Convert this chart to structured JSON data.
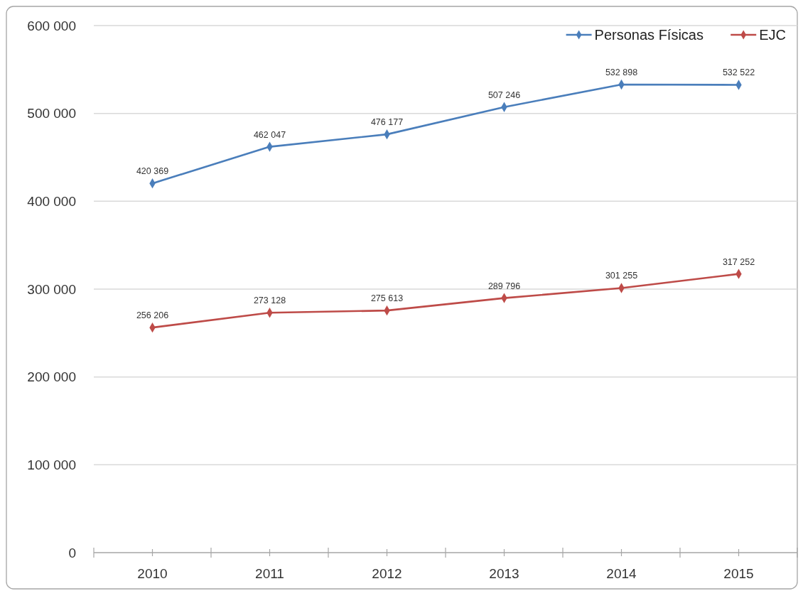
{
  "chart_data": {
    "type": "line",
    "categories": [
      "2010",
      "2011",
      "2012",
      "2013",
      "2014",
      "2015"
    ],
    "series": [
      {
        "name": "Personas Físicas",
        "color": "#4a7ebb",
        "values": [
          420369,
          462047,
          476177,
          507246,
          532898,
          532522
        ],
        "value_labels": [
          "420 369",
          "462 047",
          "476 177",
          "507 246",
          "532 898",
          "532 522"
        ]
      },
      {
        "name": "EJC",
        "color": "#be4b48",
        "values": [
          256206,
          273128,
          275613,
          289796,
          301255,
          317252
        ],
        "value_labels": [
          "256 206",
          "273 128",
          "275 613",
          "289 796",
          "301 255",
          "317 252"
        ]
      }
    ],
    "ylim": [
      0,
      600000
    ],
    "yticks": [
      0,
      {
        "value": 100000,
        "label": "100 000"
      },
      {
        "value": 200000,
        "label": "200 000"
      },
      {
        "value": 300000,
        "label": "300 000"
      },
      {
        "value": 400000,
        "label": "400 000"
      },
      {
        "value": 500000,
        "label": "500 000"
      },
      {
        "value": 600000,
        "label": "600 000"
      }
    ],
    "grid": "y",
    "legend": "top right",
    "marker": "diamond",
    "line_style": "solid"
  }
}
